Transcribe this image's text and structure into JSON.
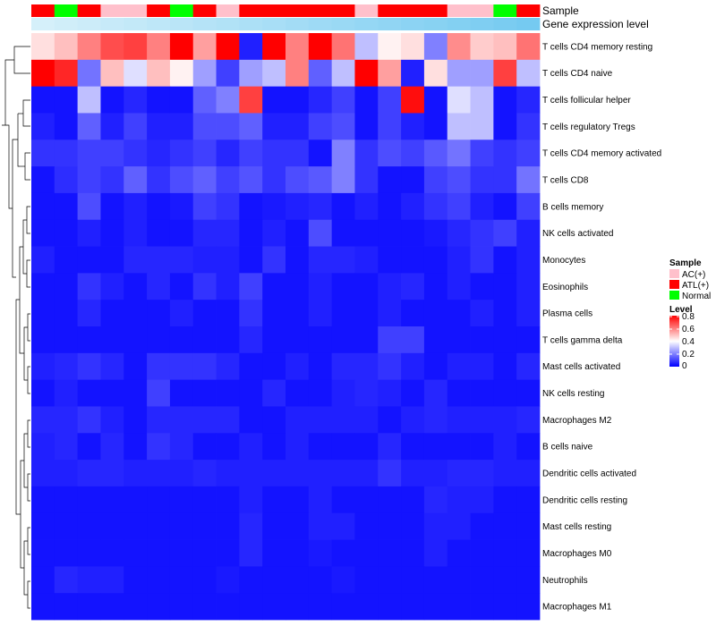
{
  "chart_data": {
    "type": "heatmap",
    "colors": {
      "low": "#0000FF",
      "mid": "#FFFFFF",
      "high": "#FF0000",
      "ac": "#FFC0CB",
      "atl": "#FF0000",
      "normal": "#00FF00",
      "expr_light": "#E0F4FB",
      "expr_dark": "#6FC8F0"
    },
    "annotation": {
      "sample_label": "Sample",
      "expression_label": "Gene expression level",
      "samples": [
        "ATL(+)",
        "Normal",
        "ATL(+)",
        "AC(+)",
        "AC(+)",
        "ATL(+)",
        "Normal",
        "ATL(+)",
        "AC(+)",
        "ATL(+)",
        "ATL(+)",
        "ATL(+)",
        "ATL(+)",
        "ATL(+)",
        "AC(+)",
        "ATL(+)",
        "ATL(+)",
        "ATL(+)",
        "AC(+)",
        "AC(+)",
        "Normal",
        "ATL(+)"
      ],
      "expression": [
        0.1,
        0.14,
        0.18,
        0.22,
        0.26,
        0.3,
        0.34,
        0.38,
        0.42,
        0.46,
        0.5,
        0.54,
        0.58,
        0.62,
        0.66,
        0.7,
        0.74,
        0.78,
        0.82,
        0.86,
        0.9,
        0.95
      ]
    },
    "rows": [
      "T cells CD4 memory resting",
      "T cells CD4 naive",
      "T cells follicular helper",
      "T cells regulatory  Tregs",
      "T cells CD4 memory activated",
      "T cells CD8",
      "B cells memory",
      "NK cells activated",
      "Monocytes",
      "Eosinophils",
      "Plasma cells",
      "T cells gamma delta",
      "Mast cells activated",
      "NK cells resting",
      "Macrophages M2",
      "B cells naive",
      "Dendritic cells activated",
      "Dendritic cells resting",
      "Mast cells resting",
      "Macrophages M0",
      "Neutrophils",
      "Macrophages M1"
    ],
    "values": [
      [
        0.45,
        0.5,
        0.6,
        0.68,
        0.7,
        0.6,
        0.8,
        0.55,
        0.8,
        0.05,
        0.8,
        0.6,
        0.8,
        0.62,
        0.3,
        0.42,
        0.45,
        0.2,
        0.58,
        0.48,
        0.5,
        0.62
      ],
      [
        0.8,
        0.74,
        0.18,
        0.5,
        0.35,
        0.5,
        0.42,
        0.25,
        0.1,
        0.25,
        0.3,
        0.6,
        0.15,
        0.3,
        0.8,
        0.55,
        0.05,
        0.45,
        0.25,
        0.25,
        0.7,
        0.3
      ],
      [
        0.03,
        0.03,
        0.3,
        0.03,
        0.06,
        0.03,
        0.03,
        0.15,
        0.2,
        0.7,
        0.03,
        0.03,
        0.06,
        0.1,
        0.03,
        0.1,
        0.78,
        0.03,
        0.35,
        0.3,
        0.03,
        0.06
      ],
      [
        0.05,
        0.03,
        0.15,
        0.05,
        0.1,
        0.05,
        0.05,
        0.12,
        0.12,
        0.15,
        0.05,
        0.05,
        0.1,
        0.12,
        0.03,
        0.1,
        0.05,
        0.03,
        0.3,
        0.3,
        0.03,
        0.08
      ],
      [
        0.08,
        0.08,
        0.1,
        0.1,
        0.08,
        0.06,
        0.08,
        0.1,
        0.06,
        0.1,
        0.08,
        0.08,
        0.03,
        0.2,
        0.08,
        0.12,
        0.1,
        0.14,
        0.18,
        0.1,
        0.08,
        0.1
      ],
      [
        0.03,
        0.07,
        0.1,
        0.08,
        0.15,
        0.08,
        0.12,
        0.15,
        0.1,
        0.13,
        0.08,
        0.12,
        0.14,
        0.2,
        0.08,
        0.03,
        0.03,
        0.1,
        0.12,
        0.08,
        0.08,
        0.18
      ],
      [
        0.03,
        0.03,
        0.12,
        0.03,
        0.05,
        0.03,
        0.04,
        0.1,
        0.08,
        0.03,
        0.04,
        0.05,
        0.06,
        0.03,
        0.05,
        0.03,
        0.05,
        0.08,
        0.1,
        0.05,
        0.03,
        0.1
      ],
      [
        0.03,
        0.03,
        0.05,
        0.03,
        0.05,
        0.03,
        0.03,
        0.06,
        0.06,
        0.03,
        0.05,
        0.03,
        0.12,
        0.03,
        0.03,
        0.03,
        0.03,
        0.04,
        0.06,
        0.08,
        0.1,
        0.05
      ],
      [
        0.05,
        0.03,
        0.03,
        0.03,
        0.06,
        0.06,
        0.06,
        0.05,
        0.05,
        0.03,
        0.08,
        0.03,
        0.06,
        0.06,
        0.05,
        0.03,
        0.03,
        0.03,
        0.05,
        0.08,
        0.03,
        0.05
      ],
      [
        0.03,
        0.03,
        0.08,
        0.05,
        0.03,
        0.06,
        0.03,
        0.08,
        0.05,
        0.1,
        0.03,
        0.03,
        0.05,
        0.03,
        0.03,
        0.05,
        0.06,
        0.03,
        0.05,
        0.03,
        0.03,
        0.05
      ],
      [
        0.03,
        0.03,
        0.06,
        0.03,
        0.03,
        0.03,
        0.05,
        0.03,
        0.03,
        0.08,
        0.03,
        0.03,
        0.05,
        0.03,
        0.03,
        0.05,
        0.03,
        0.03,
        0.03,
        0.05,
        0.03,
        0.05
      ],
      [
        0.03,
        0.03,
        0.03,
        0.03,
        0.03,
        0.03,
        0.03,
        0.03,
        0.03,
        0.06,
        0.03,
        0.03,
        0.03,
        0.03,
        0.03,
        0.1,
        0.1,
        0.03,
        0.03,
        0.03,
        0.03,
        0.03
      ],
      [
        0.05,
        0.06,
        0.08,
        0.06,
        0.03,
        0.08,
        0.08,
        0.08,
        0.06,
        0.03,
        0.03,
        0.05,
        0.03,
        0.06,
        0.06,
        0.08,
        0.05,
        0.03,
        0.05,
        0.05,
        0.03,
        0.06
      ],
      [
        0.03,
        0.05,
        0.03,
        0.03,
        0.03,
        0.1,
        0.03,
        0.03,
        0.03,
        0.03,
        0.06,
        0.03,
        0.03,
        0.05,
        0.06,
        0.05,
        0.03,
        0.06,
        0.03,
        0.03,
        0.03,
        0.03
      ],
      [
        0.06,
        0.06,
        0.08,
        0.05,
        0.03,
        0.06,
        0.06,
        0.06,
        0.06,
        0.03,
        0.03,
        0.05,
        0.05,
        0.05,
        0.05,
        0.03,
        0.05,
        0.06,
        0.05,
        0.05,
        0.05,
        0.06
      ],
      [
        0.05,
        0.06,
        0.03,
        0.06,
        0.03,
        0.08,
        0.06,
        0.03,
        0.03,
        0.05,
        0.03,
        0.05,
        0.03,
        0.03,
        0.03,
        0.06,
        0.03,
        0.03,
        0.03,
        0.03,
        0.05,
        0.03
      ],
      [
        0.05,
        0.05,
        0.06,
        0.06,
        0.05,
        0.05,
        0.05,
        0.06,
        0.05,
        0.05,
        0.05,
        0.05,
        0.05,
        0.05,
        0.05,
        0.08,
        0.05,
        0.05,
        0.06,
        0.06,
        0.05,
        0.05
      ],
      [
        0.03,
        0.03,
        0.03,
        0.03,
        0.03,
        0.03,
        0.03,
        0.03,
        0.03,
        0.05,
        0.03,
        0.03,
        0.05,
        0.03,
        0.03,
        0.03,
        0.03,
        0.06,
        0.05,
        0.05,
        0.03,
        0.03
      ],
      [
        0.03,
        0.03,
        0.03,
        0.03,
        0.03,
        0.03,
        0.03,
        0.03,
        0.03,
        0.06,
        0.03,
        0.03,
        0.05,
        0.05,
        0.03,
        0.03,
        0.03,
        0.05,
        0.05,
        0.03,
        0.03,
        0.03
      ],
      [
        0.03,
        0.03,
        0.03,
        0.03,
        0.03,
        0.03,
        0.03,
        0.03,
        0.03,
        0.06,
        0.03,
        0.03,
        0.04,
        0.03,
        0.03,
        0.03,
        0.03,
        0.05,
        0.03,
        0.03,
        0.03,
        0.03
      ],
      [
        0.03,
        0.06,
        0.05,
        0.05,
        0.03,
        0.03,
        0.03,
        0.03,
        0.04,
        0.03,
        0.03,
        0.03,
        0.03,
        0.04,
        0.03,
        0.03,
        0.03,
        0.03,
        0.03,
        0.03,
        0.03,
        0.03
      ],
      [
        0.03,
        0.03,
        0.03,
        0.03,
        0.03,
        0.03,
        0.03,
        0.03,
        0.03,
        0.03,
        0.03,
        0.03,
        0.03,
        0.03,
        0.03,
        0.03,
        0.03,
        0.03,
        0.03,
        0.03,
        0.03,
        0.03
      ]
    ],
    "range": [
      0,
      0.8
    ],
    "legend": {
      "sample_title": "Sample",
      "sample_items": [
        "AC(+)",
        "ATL(+)",
        "Normal"
      ],
      "level_title": "Level",
      "level_ticks": [
        "0.8",
        "0.6",
        "0.4",
        "0.2",
        "0"
      ]
    }
  }
}
